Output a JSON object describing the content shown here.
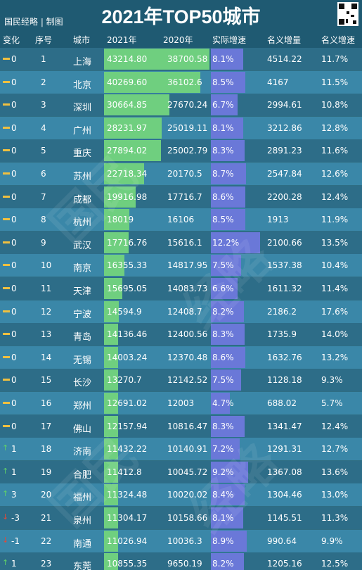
{
  "header": {
    "title": "2021年TOP50城市",
    "brand": "国民经略 | 制图"
  },
  "columns": [
    "变化",
    "序号",
    "城市",
    "2021年",
    "2020年",
    "实际增速",
    "名义增量",
    "名义增速"
  ],
  "colors": {
    "gdp2021_bar": "#6fcf7f",
    "speed_bar": "#6a78d8",
    "up": "#5fd06a",
    "down": "#e04a3a",
    "flat": "#f0c040"
  },
  "chart_data": {
    "type": "table",
    "rows": [
      {
        "change": "0",
        "dir": "flat",
        "rank": "1",
        "city": "上海",
        "gdp2021": "43214.80",
        "gdp2020": "38700.58",
        "real_growth": "8.1%",
        "nominal_increase": "4514.22",
        "nominal_growth": "11.7%"
      },
      {
        "change": "0",
        "dir": "flat",
        "rank": "2",
        "city": "北京",
        "gdp2021": "40269.60",
        "gdp2020": "36102.6",
        "real_growth": "8.5%",
        "nominal_increase": "4167",
        "nominal_growth": "11.5%"
      },
      {
        "change": "0",
        "dir": "flat",
        "rank": "3",
        "city": "深圳",
        "gdp2021": "30664.85",
        "gdp2020": "27670.24",
        "real_growth": "6.7%",
        "nominal_increase": "2994.61",
        "nominal_growth": "10.8%"
      },
      {
        "change": "0",
        "dir": "flat",
        "rank": "4",
        "city": "广州",
        "gdp2021": "28231.97",
        "gdp2020": "25019.11",
        "real_growth": "8.1%",
        "nominal_increase": "3212.86",
        "nominal_growth": "12.8%"
      },
      {
        "change": "0",
        "dir": "flat",
        "rank": "5",
        "city": "重庆",
        "gdp2021": "27894.02",
        "gdp2020": "25002.79",
        "real_growth": "8.3%",
        "nominal_increase": "2891.23",
        "nominal_growth": "11.6%"
      },
      {
        "change": "0",
        "dir": "flat",
        "rank": "6",
        "city": "苏州",
        "gdp2021": "22718.34",
        "gdp2020": "20170.5",
        "real_growth": "8.7%",
        "nominal_increase": "2547.84",
        "nominal_growth": "12.6%"
      },
      {
        "change": "0",
        "dir": "flat",
        "rank": "7",
        "city": "成都",
        "gdp2021": "19916.98",
        "gdp2020": "17716.7",
        "real_growth": "8.6%",
        "nominal_increase": "2200.28",
        "nominal_growth": "12.4%"
      },
      {
        "change": "0",
        "dir": "flat",
        "rank": "8",
        "city": "杭州",
        "gdp2021": "18019",
        "gdp2020": "16106",
        "real_growth": "8.5%",
        "nominal_increase": "1913",
        "nominal_growth": "11.9%"
      },
      {
        "change": "0",
        "dir": "flat",
        "rank": "9",
        "city": "武汉",
        "gdp2021": "17716.76",
        "gdp2020": "15616.1",
        "real_growth": "12.2%",
        "nominal_increase": "2100.66",
        "nominal_growth": "13.5%"
      },
      {
        "change": "0",
        "dir": "flat",
        "rank": "10",
        "city": "南京",
        "gdp2021": "16355.33",
        "gdp2020": "14817.95",
        "real_growth": "7.5%",
        "nominal_increase": "1537.38",
        "nominal_growth": "10.4%"
      },
      {
        "change": "0",
        "dir": "flat",
        "rank": "11",
        "city": "天津",
        "gdp2021": "15695.05",
        "gdp2020": "14083.73",
        "real_growth": "6.6%",
        "nominal_increase": "1611.32",
        "nominal_growth": "11.4%"
      },
      {
        "change": "0",
        "dir": "flat",
        "rank": "12",
        "city": "宁波",
        "gdp2021": "14594.9",
        "gdp2020": "12408.7",
        "real_growth": "8.2%",
        "nominal_increase": "2186.2",
        "nominal_growth": "17.6%"
      },
      {
        "change": "0",
        "dir": "flat",
        "rank": "13",
        "city": "青岛",
        "gdp2021": "14136.46",
        "gdp2020": "12400.56",
        "real_growth": "8.3%",
        "nominal_increase": "1735.9",
        "nominal_growth": "14.0%"
      },
      {
        "change": "0",
        "dir": "flat",
        "rank": "14",
        "city": "无锡",
        "gdp2021": "14003.24",
        "gdp2020": "12370.48",
        "real_growth": "8.6%",
        "nominal_increase": "1632.76",
        "nominal_growth": "13.2%"
      },
      {
        "change": "0",
        "dir": "flat",
        "rank": "15",
        "city": "长沙",
        "gdp2021": "13270.7",
        "gdp2020": "12142.52",
        "real_growth": "7.5%",
        "nominal_increase": "1128.18",
        "nominal_growth": "9.3%"
      },
      {
        "change": "0",
        "dir": "flat",
        "rank": "16",
        "city": "郑州",
        "gdp2021": "12691.02",
        "gdp2020": "12003",
        "real_growth": "4.7%",
        "nominal_increase": "688.02",
        "nominal_growth": "5.7%"
      },
      {
        "change": "0",
        "dir": "flat",
        "rank": "17",
        "city": "佛山",
        "gdp2021": "12157.94",
        "gdp2020": "10816.47",
        "real_growth": "8.3%",
        "nominal_increase": "1341.47",
        "nominal_growth": "12.4%"
      },
      {
        "change": "1",
        "dir": "up",
        "rank": "18",
        "city": "济南",
        "gdp2021": "11432.22",
        "gdp2020": "10140.91",
        "real_growth": "7.2%",
        "nominal_increase": "1291.31",
        "nominal_growth": "12.7%"
      },
      {
        "change": "1",
        "dir": "up",
        "rank": "19",
        "city": "合肥",
        "gdp2021": "11412.8",
        "gdp2020": "10045.72",
        "real_growth": "9.2%",
        "nominal_increase": "1367.08",
        "nominal_growth": "13.6%"
      },
      {
        "change": "3",
        "dir": "up",
        "rank": "20",
        "city": "福州",
        "gdp2021": "11324.48",
        "gdp2020": "10020.02",
        "real_growth": "8.4%",
        "nominal_increase": "1304.46",
        "nominal_growth": "13.0%"
      },
      {
        "change": "-3",
        "dir": "down",
        "rank": "21",
        "city": "泉州",
        "gdp2021": "11304.17",
        "gdp2020": "10158.66",
        "real_growth": "8.1%",
        "nominal_increase": "1145.51",
        "nominal_growth": "11.3%"
      },
      {
        "change": "-1",
        "dir": "down",
        "rank": "22",
        "city": "南通",
        "gdp2021": "11026.94",
        "gdp2020": "10036.3",
        "real_growth": "8.9%",
        "nominal_increase": "990.64",
        "nominal_growth": "9.9%"
      },
      {
        "change": "1",
        "dir": "up",
        "rank": "23",
        "city": "东莞",
        "gdp2021": "10855.35",
        "gdp2020": "9650.19",
        "real_growth": "8.2%",
        "nominal_increase": "1205.16",
        "nominal_growth": "12.5%"
      }
    ]
  }
}
